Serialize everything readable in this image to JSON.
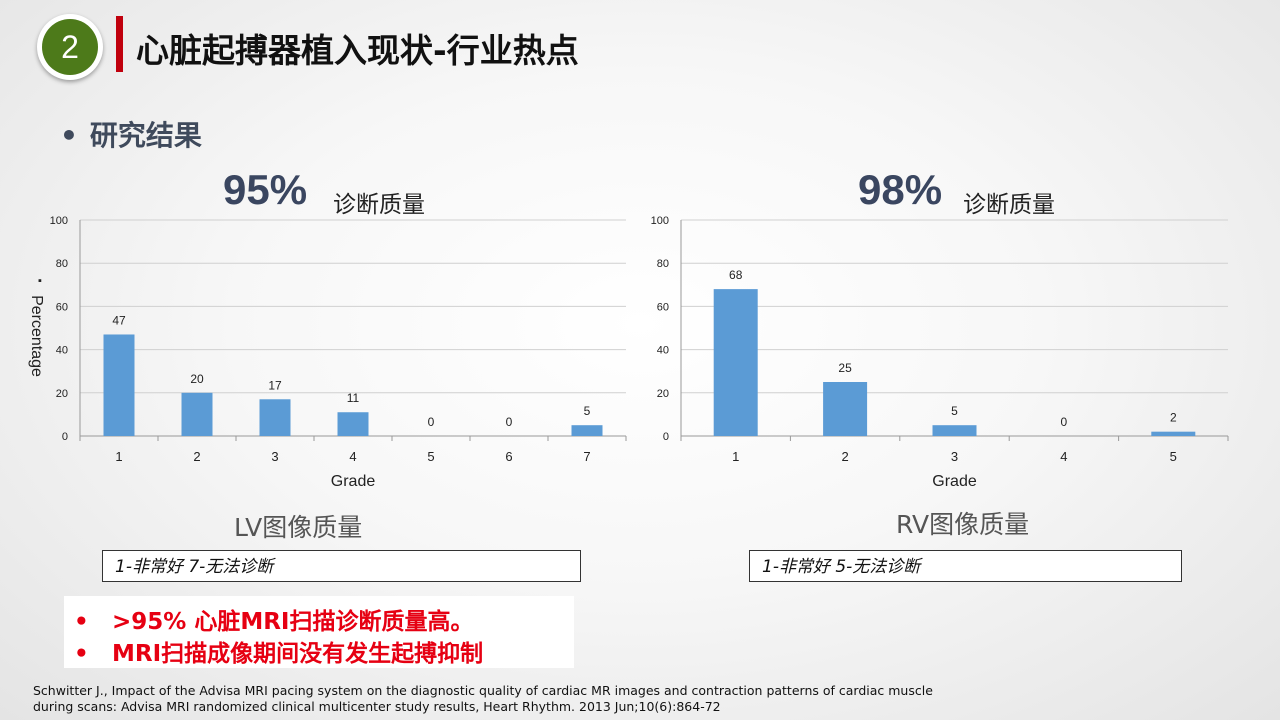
{
  "header": {
    "number": "2",
    "title": "心脏起搏器植入现状-行业热点"
  },
  "section": {
    "bullet": "•",
    "heading": "研究结果"
  },
  "left": {
    "headline_pct": "95%",
    "headline_label": "诊断质量",
    "subtitle": "LV图像质量",
    "legend_box": "1-非常好   7-无法诊断"
  },
  "right": {
    "headline_pct": "98%",
    "headline_label": "诊断质量",
    "subtitle": "RV图像质量",
    "legend_box": "1-非常好   5-无法诊断"
  },
  "conclusions": [
    {
      "bullet": "•",
      "text": ">95% 心脏MRI扫描诊断质量高。"
    },
    {
      "bullet": "•",
      "text": "MRI扫描成像期间没有发生起搏抑制"
    }
  ],
  "reference": [
    "Schwitter J., Impact of the Advisa MRI pacing system on the diagnostic quality of cardiac MR images and contraction patterns of cardiac muscle",
    "during scans: Advisa MRI randomized clinical multicenter study results, Heart Rhythm. 2013 Jun;10(6):864-72"
  ],
  "colors": {
    "bar": "#5b9bd5",
    "accent_red": "#c0000d",
    "circle_green": "#4d7a1a",
    "conclusion_red": "#e60012"
  },
  "chart_data": [
    {
      "type": "bar",
      "categories": [
        "1",
        "2",
        "3",
        "4",
        "5",
        "6",
        "7"
      ],
      "values": [
        47,
        20,
        17,
        11,
        0,
        0,
        5
      ],
      "title": "",
      "xlabel": "Grade",
      "ylabel": "Percentage",
      "ylabel_marker": "▪",
      "ylim": [
        0,
        100
      ],
      "yticks": [
        "0",
        "20",
        "40",
        "60",
        "80",
        "100"
      ],
      "grid": true,
      "data_labels": true
    },
    {
      "type": "bar",
      "categories": [
        "1",
        "2",
        "3",
        "4",
        "5"
      ],
      "values": [
        68,
        25,
        5,
        0,
        2
      ],
      "title": "",
      "xlabel": "Grade",
      "ylabel": "",
      "ylim": [
        0,
        100
      ],
      "yticks": [
        "0",
        "20",
        "40",
        "60",
        "80",
        "100"
      ],
      "grid": true,
      "data_labels": true
    }
  ]
}
